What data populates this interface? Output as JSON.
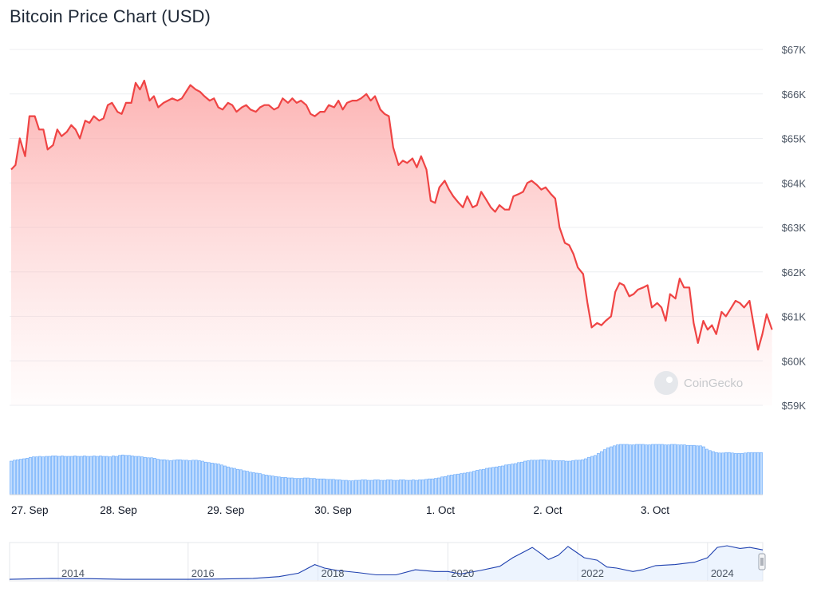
{
  "chart_data": {
    "type": "line",
    "title": "Bitcoin Price Chart (USD)",
    "currency_format": "$",
    "ylim": [
      59000,
      67000
    ],
    "yticks": [
      {
        "value": 67000,
        "label": "$67K"
      },
      {
        "value": 66000,
        "label": "$66K"
      },
      {
        "value": 65000,
        "label": "$65K"
      },
      {
        "value": 64000,
        "label": "$64K"
      },
      {
        "value": 63000,
        "label": "$63K"
      },
      {
        "value": 62000,
        "label": "$62K"
      },
      {
        "value": 61000,
        "label": "$61K"
      },
      {
        "value": 60000,
        "label": "$60K"
      },
      {
        "value": 59000,
        "label": "$59K"
      }
    ],
    "xticks": [
      {
        "t": 0.0,
        "label": "27. Sep"
      },
      {
        "t": 1.0,
        "label": "28. Sep"
      },
      {
        "t": 2.0,
        "label": "29. Sep"
      },
      {
        "t": 3.0,
        "label": "30. Sep"
      },
      {
        "t": 4.0,
        "label": "1. Oct"
      },
      {
        "t": 5.0,
        "label": "2. Oct"
      },
      {
        "t": 6.0,
        "label": "3. Oct"
      }
    ],
    "t_range": [
      0.0,
      6.89
    ],
    "series": [
      {
        "name": "Price",
        "color": "#ef4444",
        "points": [
          [
            0.0,
            64300
          ],
          [
            0.04,
            64400
          ],
          [
            0.08,
            65000
          ],
          [
            0.13,
            64600
          ],
          [
            0.17,
            65500
          ],
          [
            0.22,
            65500
          ],
          [
            0.26,
            65200
          ],
          [
            0.3,
            65200
          ],
          [
            0.34,
            64750
          ],
          [
            0.39,
            64850
          ],
          [
            0.43,
            65200
          ],
          [
            0.47,
            65050
          ],
          [
            0.52,
            65150
          ],
          [
            0.56,
            65300
          ],
          [
            0.6,
            65200
          ],
          [
            0.64,
            65000
          ],
          [
            0.69,
            65400
          ],
          [
            0.73,
            65350
          ],
          [
            0.77,
            65500
          ],
          [
            0.82,
            65400
          ],
          [
            0.86,
            65450
          ],
          [
            0.9,
            65750
          ],
          [
            0.94,
            65800
          ],
          [
            0.99,
            65600
          ],
          [
            1.03,
            65550
          ],
          [
            1.07,
            65800
          ],
          [
            1.12,
            65800
          ],
          [
            1.16,
            66250
          ],
          [
            1.2,
            66100
          ],
          [
            1.24,
            66300
          ],
          [
            1.29,
            65850
          ],
          [
            1.33,
            65950
          ],
          [
            1.37,
            65700
          ],
          [
            1.42,
            65800
          ],
          [
            1.46,
            65850
          ],
          [
            1.5,
            65900
          ],
          [
            1.55,
            65850
          ],
          [
            1.59,
            65900
          ],
          [
            1.63,
            66050
          ],
          [
            1.67,
            66200
          ],
          [
            1.72,
            66100
          ],
          [
            1.76,
            66050
          ],
          [
            1.8,
            65950
          ],
          [
            1.85,
            65850
          ],
          [
            1.89,
            65900
          ],
          [
            1.93,
            65700
          ],
          [
            1.97,
            65650
          ],
          [
            2.02,
            65800
          ],
          [
            2.06,
            65750
          ],
          [
            2.1,
            65600
          ],
          [
            2.15,
            65700
          ],
          [
            2.19,
            65750
          ],
          [
            2.23,
            65650
          ],
          [
            2.28,
            65600
          ],
          [
            2.32,
            65700
          ],
          [
            2.36,
            65750
          ],
          [
            2.4,
            65750
          ],
          [
            2.45,
            65650
          ],
          [
            2.49,
            65700
          ],
          [
            2.53,
            65900
          ],
          [
            2.58,
            65800
          ],
          [
            2.62,
            65900
          ],
          [
            2.66,
            65800
          ],
          [
            2.7,
            65850
          ],
          [
            2.75,
            65750
          ],
          [
            2.79,
            65550
          ],
          [
            2.83,
            65500
          ],
          [
            2.88,
            65600
          ],
          [
            2.92,
            65600
          ],
          [
            2.96,
            65750
          ],
          [
            3.01,
            65700
          ],
          [
            3.05,
            65850
          ],
          [
            3.09,
            65650
          ],
          [
            3.13,
            65800
          ],
          [
            3.18,
            65850
          ],
          [
            3.22,
            65850
          ],
          [
            3.26,
            65900
          ],
          [
            3.31,
            66000
          ],
          [
            3.35,
            65850
          ],
          [
            3.39,
            65950
          ],
          [
            3.44,
            65650
          ],
          [
            3.48,
            65550
          ],
          [
            3.52,
            65500
          ],
          [
            3.56,
            64800
          ],
          [
            3.61,
            64400
          ],
          [
            3.65,
            64500
          ],
          [
            3.69,
            64450
          ],
          [
            3.74,
            64550
          ],
          [
            3.78,
            64350
          ],
          [
            3.82,
            64600
          ],
          [
            3.87,
            64300
          ],
          [
            3.91,
            63600
          ],
          [
            3.95,
            63550
          ],
          [
            3.99,
            63900
          ],
          [
            4.04,
            64050
          ],
          [
            4.08,
            63850
          ],
          [
            4.12,
            63700
          ],
          [
            4.17,
            63550
          ],
          [
            4.21,
            63450
          ],
          [
            4.25,
            63700
          ],
          [
            4.3,
            63450
          ],
          [
            4.34,
            63500
          ],
          [
            4.38,
            63800
          ],
          [
            4.42,
            63650
          ],
          [
            4.47,
            63450
          ],
          [
            4.51,
            63350
          ],
          [
            4.55,
            63500
          ],
          [
            4.6,
            63400
          ],
          [
            4.64,
            63400
          ],
          [
            4.68,
            63700
          ],
          [
            4.73,
            63750
          ],
          [
            4.77,
            63800
          ],
          [
            4.81,
            64000
          ],
          [
            4.85,
            64050
          ],
          [
            4.9,
            63950
          ],
          [
            4.94,
            63850
          ],
          [
            4.98,
            63900
          ],
          [
            5.03,
            63750
          ],
          [
            5.07,
            63650
          ],
          [
            5.11,
            63000
          ],
          [
            5.16,
            62650
          ],
          [
            5.2,
            62600
          ],
          [
            5.24,
            62400
          ],
          [
            5.28,
            62100
          ],
          [
            5.33,
            61950
          ],
          [
            5.37,
            61300
          ],
          [
            5.41,
            60750
          ],
          [
            5.46,
            60850
          ],
          [
            5.5,
            60800
          ],
          [
            5.54,
            60900
          ],
          [
            5.59,
            61000
          ],
          [
            5.63,
            61550
          ],
          [
            5.67,
            61750
          ],
          [
            5.71,
            61700
          ],
          [
            5.76,
            61450
          ],
          [
            5.8,
            61500
          ],
          [
            5.84,
            61600
          ],
          [
            5.89,
            61650
          ],
          [
            5.93,
            61700
          ],
          [
            5.97,
            61200
          ],
          [
            6.02,
            61300
          ],
          [
            6.06,
            61200
          ],
          [
            6.1,
            60900
          ],
          [
            6.14,
            61500
          ],
          [
            6.19,
            61400
          ],
          [
            6.23,
            61850
          ],
          [
            6.27,
            61650
          ],
          [
            6.32,
            61650
          ],
          [
            6.36,
            60850
          ],
          [
            6.4,
            60400
          ],
          [
            6.45,
            60900
          ],
          [
            6.49,
            60700
          ],
          [
            6.53,
            60800
          ],
          [
            6.57,
            60600
          ],
          [
            6.62,
            61100
          ],
          [
            6.66,
            61000
          ],
          [
            6.7,
            61150
          ],
          [
            6.75,
            61350
          ],
          [
            6.79,
            61300
          ],
          [
            6.83,
            61200
          ],
          [
            6.88,
            61350
          ],
          [
            6.92,
            60800
          ],
          [
            6.96,
            60250
          ],
          [
            7.0,
            60600
          ],
          [
            7.04,
            61050
          ],
          [
            7.09,
            60700
          ]
        ]
      }
    ],
    "volume": {
      "note": "relative trading volume (0-1)",
      "values": [
        0.7,
        0.72,
        0.73,
        0.74,
        0.75,
        0.76,
        0.78,
        0.79,
        0.79,
        0.8,
        0.79,
        0.8,
        0.8,
        0.81,
        0.81,
        0.8,
        0.81,
        0.8,
        0.8,
        0.8,
        0.81,
        0.8,
        0.8,
        0.81,
        0.8,
        0.8,
        0.81,
        0.8,
        0.81,
        0.8,
        0.8,
        0.79,
        0.81,
        0.8,
        0.82,
        0.83,
        0.82,
        0.82,
        0.81,
        0.8,
        0.8,
        0.79,
        0.78,
        0.77,
        0.77,
        0.76,
        0.74,
        0.73,
        0.73,
        0.72,
        0.71,
        0.72,
        0.73,
        0.73,
        0.72,
        0.72,
        0.71,
        0.72,
        0.72,
        0.71,
        0.7,
        0.68,
        0.67,
        0.66,
        0.65,
        0.64,
        0.62,
        0.6,
        0.58,
        0.56,
        0.55,
        0.53,
        0.52,
        0.5,
        0.49,
        0.47,
        0.46,
        0.45,
        0.44,
        0.42,
        0.41,
        0.4,
        0.39,
        0.38,
        0.37,
        0.36,
        0.36,
        0.35,
        0.35,
        0.34,
        0.34,
        0.34,
        0.35,
        0.35,
        0.34,
        0.34,
        0.33,
        0.33,
        0.33,
        0.32,
        0.32,
        0.32,
        0.31,
        0.31,
        0.3,
        0.3,
        0.29,
        0.29,
        0.3,
        0.3,
        0.31,
        0.31,
        0.3,
        0.3,
        0.31,
        0.31,
        0.3,
        0.3,
        0.31,
        0.31,
        0.3,
        0.3,
        0.31,
        0.31,
        0.3,
        0.3,
        0.31,
        0.3,
        0.31,
        0.31,
        0.32,
        0.33,
        0.33,
        0.34,
        0.35,
        0.37,
        0.38,
        0.4,
        0.41,
        0.42,
        0.43,
        0.44,
        0.45,
        0.46,
        0.47,
        0.49,
        0.51,
        0.52,
        0.53,
        0.55,
        0.56,
        0.57,
        0.58,
        0.59,
        0.6,
        0.62,
        0.63,
        0.64,
        0.65,
        0.67,
        0.68,
        0.7,
        0.71,
        0.72,
        0.72,
        0.72,
        0.73,
        0.73,
        0.72,
        0.72,
        0.71,
        0.71,
        0.71,
        0.71,
        0.7,
        0.7,
        0.71,
        0.72,
        0.72,
        0.73,
        0.75,
        0.78,
        0.8,
        0.82,
        0.86,
        0.9,
        0.94,
        0.98,
        1.0,
        1.02,
        1.04,
        1.05,
        1.05,
        1.05,
        1.04,
        1.04,
        1.05,
        1.05,
        1.05,
        1.04,
        1.04,
        1.05,
        1.05,
        1.05,
        1.05,
        1.04,
        1.04,
        1.05,
        1.05,
        1.04,
        1.04,
        1.04,
        1.03,
        1.03,
        1.03,
        1.02,
        1.02,
        1.0,
        0.95,
        0.92,
        0.9,
        0.88,
        0.87,
        0.87,
        0.88,
        0.88,
        0.87,
        0.86,
        0.86,
        0.86,
        0.87,
        0.88,
        0.88,
        0.88,
        0.88,
        0.88
      ]
    },
    "navigator": {
      "ticks": [
        "2014",
        "2016",
        "2018",
        "2020",
        "2022",
        "2024"
      ],
      "tick_years": [
        2014,
        2016,
        2018,
        2020,
        2022,
        2024
      ],
      "year_range": [
        2013.25,
        2024.85
      ],
      "series": [
        [
          2013.25,
          0.02
        ],
        [
          2013.9,
          0.05
        ],
        [
          2014.5,
          0.04
        ],
        [
          2015.0,
          0.02
        ],
        [
          2015.5,
          0.02
        ],
        [
          2016.0,
          0.02
        ],
        [
          2016.5,
          0.03
        ],
        [
          2017.0,
          0.05
        ],
        [
          2017.4,
          0.1
        ],
        [
          2017.7,
          0.2
        ],
        [
          2017.95,
          0.45
        ],
        [
          2018.1,
          0.35
        ],
        [
          2018.3,
          0.28
        ],
        [
          2018.6,
          0.22
        ],
        [
          2018.9,
          0.15
        ],
        [
          2019.2,
          0.15
        ],
        [
          2019.5,
          0.3
        ],
        [
          2019.8,
          0.25
        ],
        [
          2020.0,
          0.25
        ],
        [
          2020.2,
          0.18
        ],
        [
          2020.5,
          0.28
        ],
        [
          2020.8,
          0.4
        ],
        [
          2021.0,
          0.65
        ],
        [
          2021.2,
          0.85
        ],
        [
          2021.3,
          0.95
        ],
        [
          2021.45,
          0.75
        ],
        [
          2021.55,
          0.6
        ],
        [
          2021.7,
          0.72
        ],
        [
          2021.85,
          0.98
        ],
        [
          2021.95,
          0.85
        ],
        [
          2022.1,
          0.65
        ],
        [
          2022.3,
          0.58
        ],
        [
          2022.45,
          0.38
        ],
        [
          2022.6,
          0.35
        ],
        [
          2022.85,
          0.25
        ],
        [
          2023.0,
          0.3
        ],
        [
          2023.2,
          0.42
        ],
        [
          2023.5,
          0.45
        ],
        [
          2023.8,
          0.52
        ],
        [
          2024.0,
          0.65
        ],
        [
          2024.15,
          0.95
        ],
        [
          2024.3,
          1.0
        ],
        [
          2024.5,
          0.92
        ],
        [
          2024.65,
          0.95
        ],
        [
          2024.85,
          0.88
        ]
      ]
    }
  },
  "watermark": "CoinGecko"
}
